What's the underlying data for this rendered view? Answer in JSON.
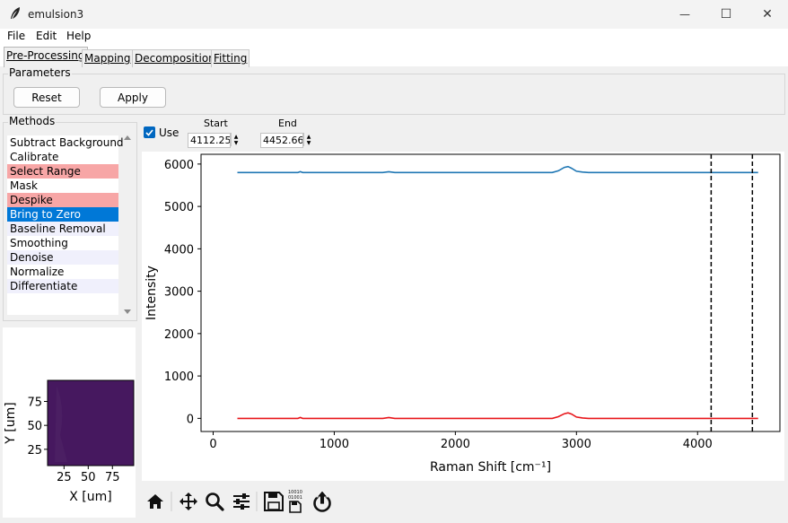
{
  "window": {
    "title": "emulsion3",
    "minimize": "—",
    "maximize": "☐",
    "close": "✕"
  },
  "menu": {
    "items": [
      "File",
      "Edit",
      "Help"
    ]
  },
  "tabs": [
    "Pre-Processing",
    "Mapping",
    "Decomposition",
    "Fitting"
  ],
  "parameters": {
    "title": "Parameters",
    "reset_label": "Reset",
    "apply_label": "Apply"
  },
  "methods": {
    "title": "Methods",
    "items": [
      {
        "label": "Subtract Background",
        "state": "normal"
      },
      {
        "label": "Calibrate",
        "state": "normal"
      },
      {
        "label": "Select Range",
        "state": "active"
      },
      {
        "label": "Mask",
        "state": "normal"
      },
      {
        "label": "Despike",
        "state": "active"
      },
      {
        "label": "Bring to Zero",
        "state": "selected"
      },
      {
        "label": "Baseline Removal",
        "state": "alt"
      },
      {
        "label": "Smoothing",
        "state": "normal"
      },
      {
        "label": "Denoise",
        "state": "alt"
      },
      {
        "label": "Normalize",
        "state": "normal"
      },
      {
        "label": "Differentiate",
        "state": "alt"
      }
    ],
    "colors": {
      "active": "#f7a6a6",
      "selected": "#0078d7",
      "alt": "#f0f0fc",
      "normal": "#ffffff"
    }
  },
  "range": {
    "use_label": "Use",
    "use_checked": true,
    "start_label": "Start",
    "start_value": "4112.25",
    "end_label": "End",
    "end_value": "4452.66"
  },
  "chart_data": {
    "type": "line",
    "xlabel": "Raman Shift [cm⁻¹]",
    "ylabel": "Intensity",
    "xlim": [
      -100,
      4680
    ],
    "ylim": [
      -310,
      6230
    ],
    "xticks": [
      0,
      1000,
      2000,
      3000,
      4000
    ],
    "yticks": [
      0,
      1000,
      2000,
      3000,
      4000,
      5000,
      6000
    ],
    "series": [
      {
        "color": "#1f77b4",
        "x": [
          200,
          700,
          720,
          740,
          1400,
          1450,
          1500,
          2800,
          2850,
          2900,
          2930,
          2960,
          3000,
          3050,
          3100,
          4500
        ],
        "y": [
          5800,
          5800,
          5820,
          5800,
          5800,
          5820,
          5800,
          5800,
          5840,
          5920,
          5940,
          5900,
          5830,
          5810,
          5800,
          5800
        ]
      },
      {
        "color": "#e8161b",
        "x": [
          200,
          700,
          720,
          740,
          1400,
          1450,
          1500,
          2800,
          2850,
          2900,
          2930,
          2960,
          3000,
          3050,
          3100,
          4500
        ],
        "y": [
          0,
          0,
          20,
          0,
          0,
          20,
          0,
          0,
          40,
          110,
          130,
          100,
          30,
          10,
          0,
          0
        ]
      }
    ],
    "vlines": [
      4112.25,
      4452.66
    ],
    "grid": false,
    "legend": "none"
  },
  "mini_map": {
    "xlabel": "X [um]",
    "ylabel": "Y [um]",
    "xticks": [
      25,
      50,
      75
    ],
    "yticks": [
      25,
      50,
      75
    ],
    "range": [
      8,
      97
    ],
    "color": "#46185f"
  },
  "toolbar": [
    "home-icon",
    "pan-icon",
    "zoom-icon",
    "configure-icon",
    "save-icon",
    "save-data-icon",
    "export-icon"
  ]
}
